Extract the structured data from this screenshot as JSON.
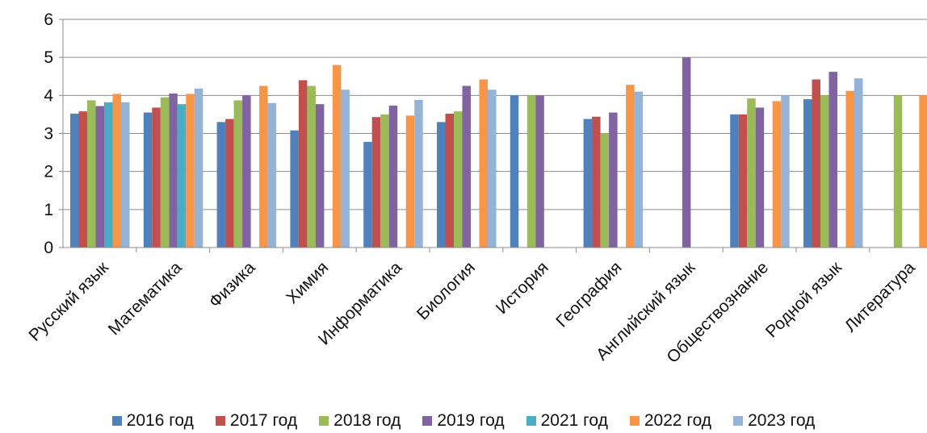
{
  "chart_data": {
    "type": "bar",
    "title": "",
    "xlabel": "",
    "ylabel": "",
    "ylim": [
      0,
      6
    ],
    "yticks": [
      "0",
      "1",
      "2",
      "3",
      "4",
      "5",
      "6"
    ],
    "grid": true,
    "legend_position": "bottom",
    "categories": [
      "Русский язык",
      "Математика",
      "Физика",
      "Химия",
      "Информатика",
      "Биология",
      "История",
      "География",
      "Английский язык",
      "Обществознание",
      "Родной язык",
      "Литература"
    ],
    "series": [
      {
        "name": "2016 год",
        "color": "#4F81BD",
        "values": [
          3.52,
          3.55,
          3.3,
          3.08,
          2.78,
          3.3,
          4.0,
          3.38,
          null,
          3.5,
          3.9,
          null
        ]
      },
      {
        "name": "2017 год",
        "color": "#C0504D",
        "values": [
          3.58,
          3.68,
          3.38,
          4.4,
          3.43,
          3.52,
          null,
          3.44,
          null,
          3.5,
          4.42,
          null
        ]
      },
      {
        "name": "2018 год",
        "color": "#9BBB59",
        "values": [
          3.87,
          3.95,
          3.87,
          4.25,
          3.5,
          3.58,
          4.0,
          3.0,
          null,
          3.92,
          4.0,
          4.0
        ]
      },
      {
        "name": "2019 год",
        "color": "#8064A2",
        "values": [
          3.72,
          4.05,
          4.0,
          3.77,
          3.73,
          4.25,
          4.0,
          3.55,
          5.0,
          3.68,
          4.62,
          null
        ]
      },
      {
        "name": "2021 год",
        "color": "#4BACC6",
        "values": [
          3.82,
          3.77,
          null,
          null,
          null,
          null,
          null,
          null,
          null,
          null,
          null,
          null
        ]
      },
      {
        "name": "2022 год",
        "color": "#F79646",
        "values": [
          4.04,
          4.04,
          4.25,
          4.8,
          3.47,
          4.42,
          null,
          4.28,
          null,
          3.85,
          4.12,
          4.0
        ]
      },
      {
        "name": "2023 год",
        "color": "#95B3D7",
        "values": [
          3.82,
          4.18,
          3.8,
          4.15,
          3.88,
          4.15,
          null,
          4.1,
          null,
          4.0,
          4.45,
          null
        ]
      }
    ]
  }
}
